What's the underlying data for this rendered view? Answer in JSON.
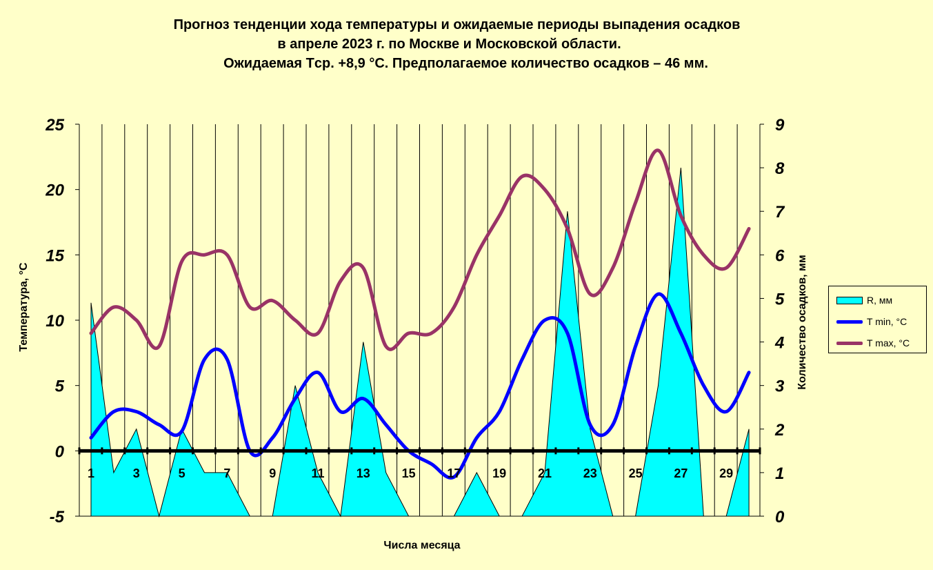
{
  "title_lines": [
    "Прогноз тенденции хода температуры и ожидаемые периоды выпадения осадков",
    "в апреле 2023 г. по Москве и Московской области.",
    "Ожидаемая Tср. +8,9 °С. Предполагаемое количество осадков – 46 мм."
  ],
  "chart_data": {
    "type": "line",
    "title": "Прогноз тенденции хода температуры и ожидаемые периоды выпадения осадков в апреле 2023 г. по Москве и Московской области. Ожидаемая Tср. +8,9 °С. Предполагаемое количество осадков – 46 мм.",
    "xlabel": "Числа месяца",
    "ylabel": "Температура, °С",
    "y2label": "Количество осадков, мм",
    "x": [
      1,
      2,
      3,
      4,
      5,
      6,
      7,
      8,
      9,
      10,
      11,
      12,
      13,
      14,
      15,
      16,
      17,
      18,
      19,
      20,
      21,
      22,
      23,
      24,
      25,
      26,
      27,
      28,
      29,
      30
    ],
    "x_tick_labels": [
      "1",
      "3",
      "5",
      "7",
      "9",
      "11",
      "13",
      "15",
      "17",
      "19",
      "21",
      "23",
      "25",
      "27",
      "29"
    ],
    "x_tick_values": [
      1,
      3,
      5,
      7,
      9,
      11,
      13,
      15,
      17,
      19,
      21,
      23,
      25,
      27,
      29
    ],
    "ylim": [
      -5,
      25
    ],
    "y_ticks": [
      "25",
      "20",
      "15",
      "10",
      "5",
      "0",
      "-5"
    ],
    "y2lim": [
      0,
      9
    ],
    "y2_ticks": [
      "9",
      "8",
      "7",
      "6",
      "5",
      "4",
      "3",
      "2",
      "1",
      "0"
    ],
    "grid": "vertical",
    "legend_position": "right",
    "series": [
      {
        "name": "R, мм",
        "kind": "area",
        "axis": "right",
        "color": "#00FFFF",
        "values": [
          4.9,
          1.0,
          2.0,
          0.0,
          2.0,
          1.0,
          1.0,
          0.0,
          0.0,
          3.0,
          1.0,
          0.0,
          4.0,
          1.0,
          0.0,
          0.0,
          0.0,
          1.0,
          0.0,
          0.0,
          1.0,
          7.0,
          2.0,
          0.0,
          0.0,
          3.0,
          8.0,
          0.0,
          0.0,
          2.0
        ]
      },
      {
        "name": "T min, °С",
        "kind": "line",
        "axis": "left",
        "color": "#0000FF",
        "values": [
          1.0,
          3.0,
          3.0,
          2.0,
          1.5,
          7.0,
          7.0,
          0.0,
          1.0,
          4.0,
          6.0,
          3.0,
          4.0,
          2.0,
          0.0,
          -1.0,
          -2.0,
          1.0,
          3.0,
          7.0,
          10.0,
          9.0,
          2.0,
          2.0,
          8.0,
          12.0,
          9.0,
          5.0,
          3.0,
          6.0
        ]
      },
      {
        "name": "T max, °С",
        "kind": "line",
        "axis": "left",
        "color": "#993366",
        "values": [
          9.0,
          11.0,
          10.0,
          8.0,
          14.5,
          15.0,
          15.0,
          11.0,
          11.5,
          10.0,
          9.0,
          13.0,
          14.0,
          8.0,
          9.0,
          9.0,
          11.0,
          15.0,
          18.0,
          21.0,
          20.0,
          17.0,
          12.0,
          14.0,
          19.0,
          23.0,
          18.0,
          15.0,
          14.0,
          17.0
        ]
      }
    ]
  }
}
